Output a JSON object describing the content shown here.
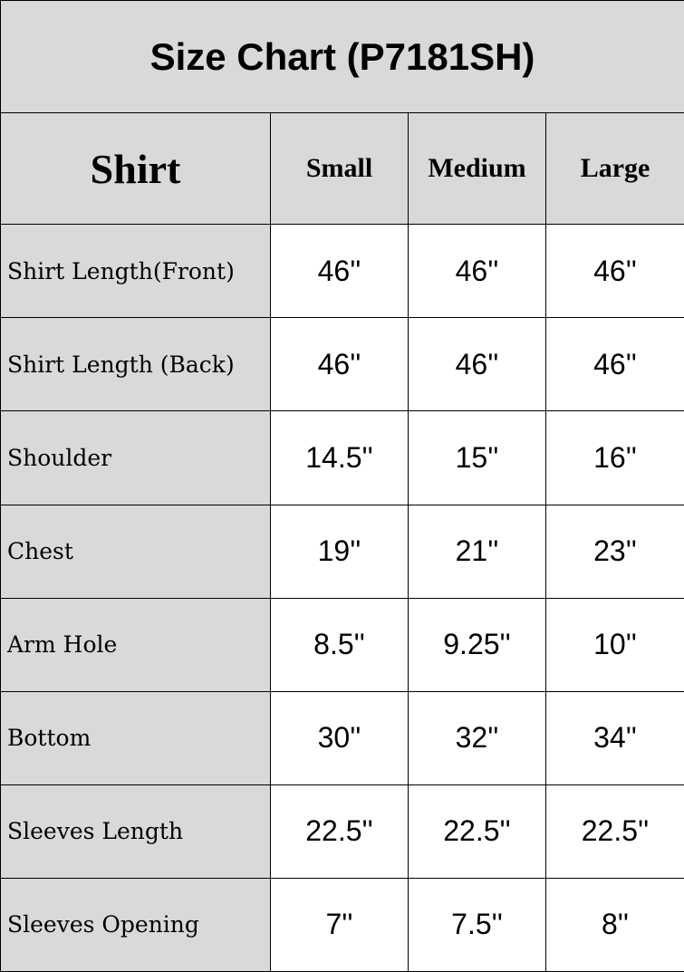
{
  "title": "Size Chart (P7181SH)",
  "header": {
    "label": "Shirt",
    "sizes": [
      "Small",
      "Medium",
      "Large"
    ]
  },
  "rows": [
    {
      "label": "Shirt Length(Front)",
      "values": [
        "46''",
        "46''",
        "46''"
      ]
    },
    {
      "label": "Shirt Length (Back)",
      "values": [
        "46''",
        "46''",
        "46''"
      ]
    },
    {
      "label": "Shoulder",
      "values": [
        "14.5''",
        "15''",
        "16''"
      ]
    },
    {
      "label": "Chest",
      "values": [
        "19''",
        "21''",
        "23''"
      ]
    },
    {
      "label": "Arm Hole",
      "values": [
        "8.5''",
        "9.25''",
        "10''"
      ]
    },
    {
      "label": "Bottom",
      "values": [
        "30''",
        "32''",
        "34''"
      ]
    },
    {
      "label": "Sleeves Length",
      "values": [
        "22.5''",
        "22.5''",
        "22.5''"
      ]
    },
    {
      "label": "Sleeves Opening",
      "values": [
        "7''",
        "7.5''",
        "8''"
      ]
    }
  ],
  "colors": {
    "header_bg": "#d9d9d9",
    "cell_bg": "#ffffff",
    "border": "#000000"
  }
}
